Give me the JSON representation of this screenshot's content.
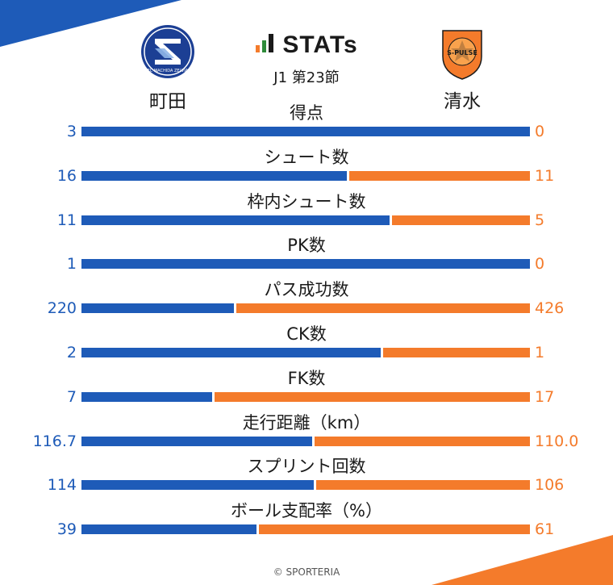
{
  "header": {
    "title": "STATs",
    "subtitle": "J1 第23節"
  },
  "teams": {
    "home": {
      "name": "町田",
      "color": "#1e5bb8",
      "logo_text": "FC MACHIDA ZELVIA"
    },
    "away": {
      "name": "清水",
      "color": "#f47b2b",
      "logo_text": "S-PULSE"
    }
  },
  "stats": [
    {
      "label": "得点",
      "home": "3",
      "away": "0",
      "home_num": 3,
      "away_num": 0
    },
    {
      "label": "シュート数",
      "home": "16",
      "away": "11",
      "home_num": 16,
      "away_num": 11
    },
    {
      "label": "枠内シュート数",
      "home": "11",
      "away": "5",
      "home_num": 11,
      "away_num": 5
    },
    {
      "label": "PK数",
      "home": "1",
      "away": "0",
      "home_num": 1,
      "away_num": 0
    },
    {
      "label": "パス成功数",
      "home": "220",
      "away": "426",
      "home_num": 220,
      "away_num": 426
    },
    {
      "label": "CK数",
      "home": "2",
      "away": "1",
      "home_num": 2,
      "away_num": 1
    },
    {
      "label": "FK数",
      "home": "7",
      "away": "17",
      "home_num": 7,
      "away_num": 17
    },
    {
      "label": "走行距離（km）",
      "home": "116.7",
      "away": "110.0",
      "home_num": 116.7,
      "away_num": 110.0
    },
    {
      "label": "スプリント回数",
      "home": "114",
      "away": "106",
      "home_num": 114,
      "away_num": 106
    },
    {
      "label": "ボール支配率（%）",
      "home": "39",
      "away": "61",
      "home_num": 39,
      "away_num": 61
    }
  ],
  "footer": {
    "copyright": "© SPORTERIA"
  }
}
